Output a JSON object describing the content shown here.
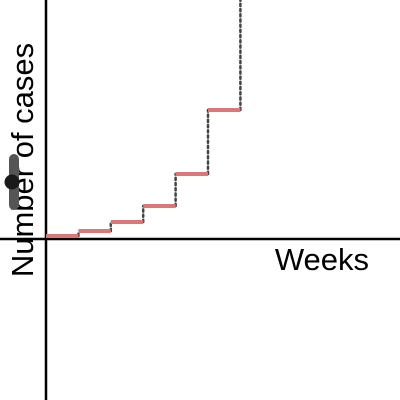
{
  "chart_data": {
    "type": "line",
    "title": "",
    "xlabel": "Weeks",
    "ylabel": "Number of cases",
    "step_series": {
      "name": "",
      "weeks": [
        0,
        1,
        2,
        3,
        4,
        5,
        6
      ],
      "cases": [
        1,
        2,
        4,
        8,
        16,
        32,
        64
      ]
    },
    "xlim": [
      0,
      11
    ],
    "ylim": [
      0,
      64
    ],
    "grid": false,
    "legend": "none"
  },
  "colors": {
    "step_segments": "#d87878",
    "risers": "#444444",
    "axes": "#000000",
    "slider_thumb": "#1a1a1a",
    "slider_track": "#555555"
  }
}
